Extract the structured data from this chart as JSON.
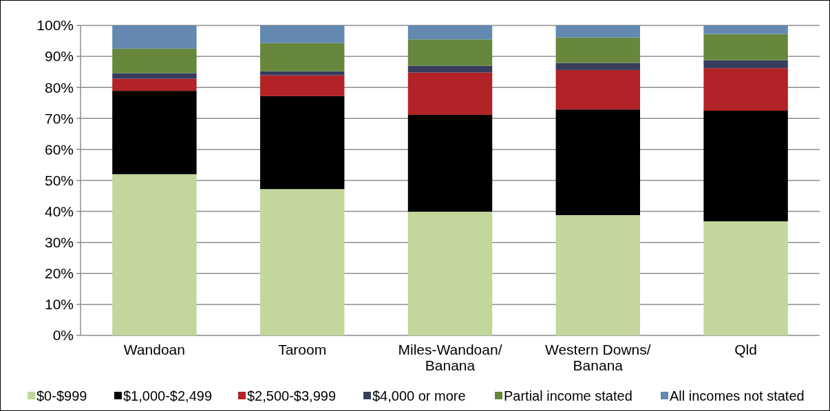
{
  "chart_data": {
    "type": "bar",
    "stacked": true,
    "categories": [
      "Wandoan",
      "Taroom",
      "Miles-Wandoan/ Banana",
      "Western Downs/ Banana",
      "Qld"
    ],
    "series": [
      {
        "name": "$0-$999",
        "color": "#c3d69b",
        "values": [
          52,
          47.2,
          39.9,
          38.8,
          36.8
        ]
      },
      {
        "name": "$1,000-$2,499",
        "color": "#000000",
        "values": [
          26.9,
          30,
          31.3,
          34.1,
          35.7
        ]
      },
      {
        "name": "$2,500-$3,999",
        "color": "#b22226",
        "values": [
          3.9,
          6.7,
          13.6,
          12.7,
          13.7
        ]
      },
      {
        "name": "$4,000 or more",
        "color": "#383d5c",
        "values": [
          1.8,
          1.3,
          2.2,
          2.3,
          2.6
        ]
      },
      {
        "name": "Partial income stated",
        "color": "#67883c",
        "values": [
          7.9,
          9.1,
          8.5,
          8.2,
          8.4
        ]
      },
      {
        "name": "All incomes not stated",
        "color": "#6389b0",
        "values": [
          7.5,
          5.7,
          4.5,
          3.9,
          2.8
        ]
      }
    ],
    "ylim": [
      0,
      100
    ],
    "yticks": [
      {
        "value": 0,
        "label": "0%"
      },
      {
        "value": 10,
        "label": "10%"
      },
      {
        "value": 20,
        "label": "20%"
      },
      {
        "value": 30,
        "label": "30%"
      },
      {
        "value": 40,
        "label": "40%"
      },
      {
        "value": 50,
        "label": "50%"
      },
      {
        "value": 60,
        "label": "60%"
      },
      {
        "value": 70,
        "label": "70%"
      },
      {
        "value": 80,
        "label": "80%"
      },
      {
        "value": 90,
        "label": "90%"
      },
      {
        "value": 100,
        "label": "100%"
      }
    ],
    "grid": "y",
    "legend": "bottom"
  }
}
